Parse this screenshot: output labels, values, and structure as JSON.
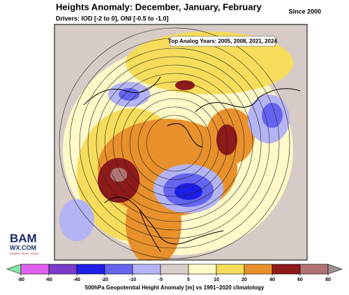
{
  "header": {
    "title": "Heights Anomaly: December, January, February",
    "subtitle": "Drivers: IOD [-2 to 0], ONI [-0.5 to -1.0]",
    "since": "Since 2000"
  },
  "annotation": "Top Analog Years: 2005, 2008, 2021, 2024",
  "logo": {
    "top": "BAM",
    "bottom": "WX.COM",
    "tagline": "Weather. Made. Simple."
  },
  "colorbar": {
    "label": "500hPa Geopotential Height Anomaly [m] vs 1991–2020 climatology",
    "ticks": [
      -80,
      -60,
      -40,
      -20,
      -10,
      -5,
      5,
      10,
      20,
      40,
      60,
      80
    ],
    "colors": [
      "#80e8a0",
      "#e060f0",
      "#7a3cc8",
      "#1e1ee6",
      "#6464f0",
      "#b4b4f4",
      "#d8ccc8",
      "#fff8c8",
      "#f6dc5a",
      "#e8902c",
      "#8e1a1a",
      "#b07474",
      "#a09090"
    ]
  }
}
